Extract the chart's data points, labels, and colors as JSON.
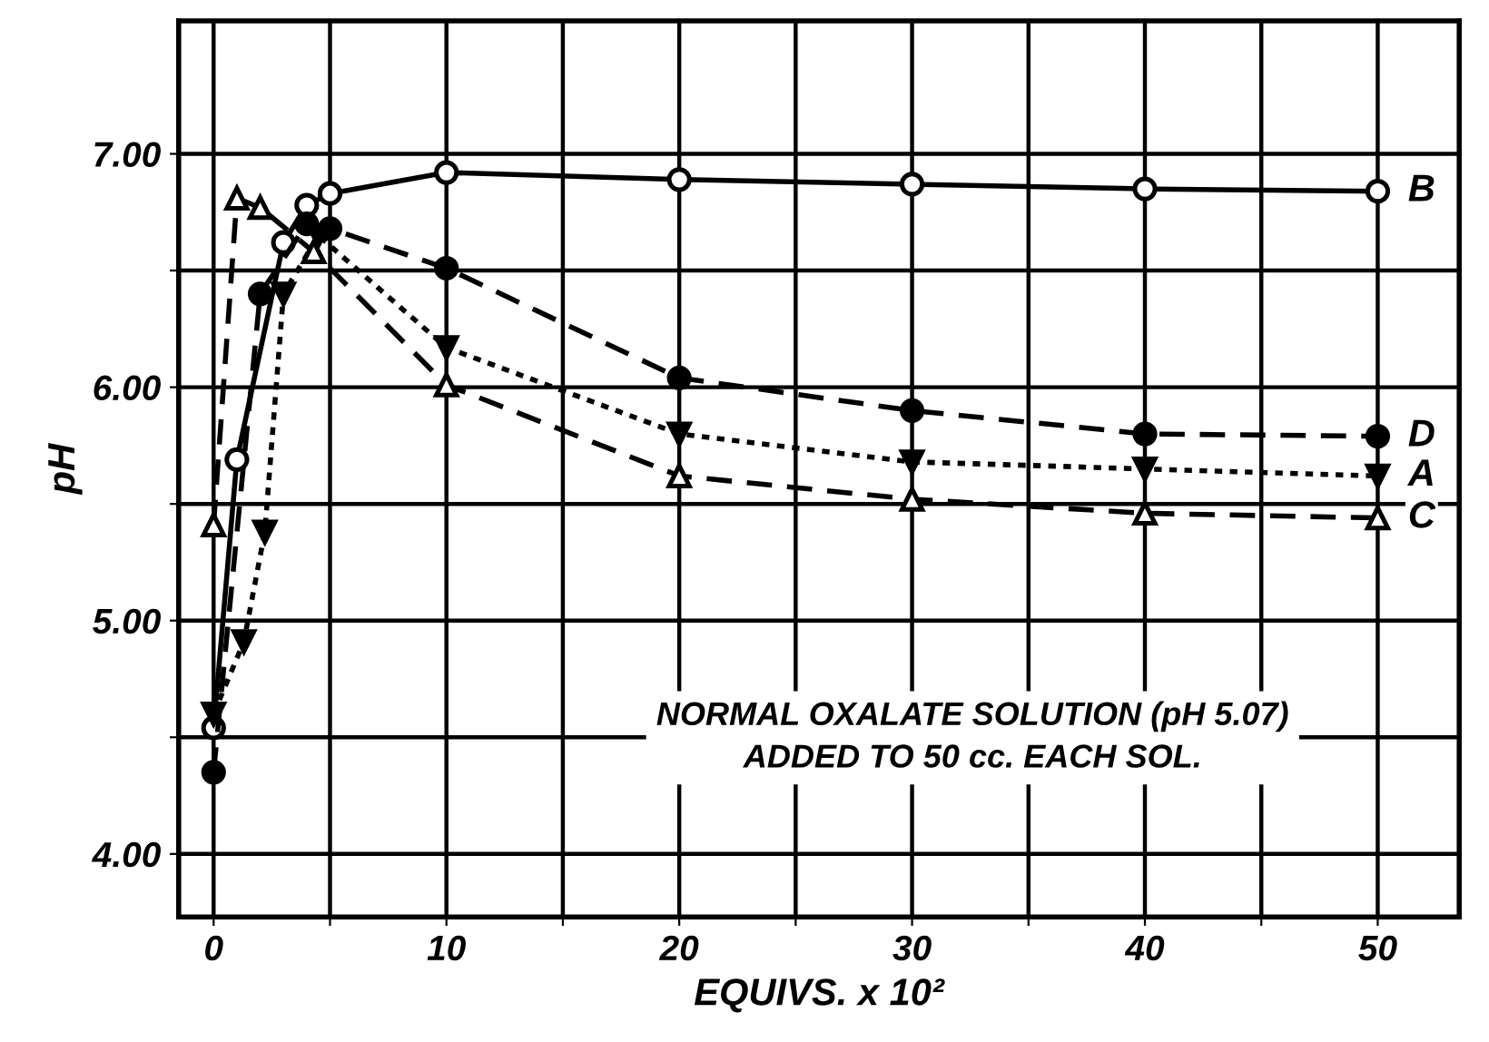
{
  "chart_data": {
    "type": "line",
    "xlabel": "EQUIVS. x 10²",
    "ylabel": "pH",
    "xlim": [
      -1.5,
      53.5
    ],
    "ylim": [
      3.73,
      7.57
    ],
    "xticks": [
      0,
      {
        "value": 5,
        "label": null
      },
      10,
      {
        "value": 15,
        "label": null
      },
      20,
      {
        "value": 25,
        "label": null
      },
      30,
      {
        "value": 35,
        "label": null
      },
      40,
      {
        "value": 45,
        "label": null
      },
      50
    ],
    "yticks": [
      {
        "value": 4,
        "label": "4.00"
      },
      {
        "value": 4.5,
        "label": null
      },
      {
        "value": 5,
        "label": "5.00"
      },
      {
        "value": 5.5,
        "label": null
      },
      {
        "value": 6,
        "label": "6.00"
      },
      {
        "value": 6.5,
        "label": null
      },
      {
        "value": 7,
        "label": "7.00"
      }
    ],
    "grid": true,
    "legend": false,
    "annotations": [
      "NORMAL OXALATE SOLUTION (pH 5.07)\nADDED TO 50 cc. EACH SOL."
    ],
    "series": [
      {
        "name": "B",
        "color": "#000000",
        "marker": "circle",
        "line_style": "solid",
        "x": [
          0,
          1,
          3,
          4,
          5,
          10,
          20,
          30,
          40,
          50
        ],
        "values": [
          4.54,
          5.69,
          6.62,
          6.78,
          6.83,
          6.92,
          6.89,
          6.87,
          6.85,
          6.84
        ]
      },
      {
        "name": "D",
        "color": "#000000",
        "marker": "circle",
        "line_style": "dashed",
        "x": [
          0,
          2,
          4,
          5,
          10,
          20,
          30,
          40,
          50
        ],
        "values": [
          4.35,
          6.4,
          6.7,
          6.68,
          6.51,
          6.04,
          5.9,
          5.8,
          5.79
        ]
      },
      {
        "name": "A",
        "color": "#000000",
        "marker": "triangle",
        "line_style": "dotted",
        "x": [
          0,
          1.3,
          2.2,
          3,
          4.5,
          10,
          20,
          30,
          40,
          50
        ],
        "values": [
          4.6,
          4.91,
          5.38,
          6.4,
          6.65,
          6.17,
          5.8,
          5.68,
          5.65,
          5.62
        ]
      },
      {
        "name": "C",
        "color": "#000000",
        "marker": "triangle",
        "line_style": "dashed",
        "x": [
          0,
          1,
          2,
          4.3,
          10,
          20,
          30,
          40,
          50
        ],
        "values": [
          5.41,
          6.81,
          6.77,
          6.58,
          6.01,
          5.62,
          5.52,
          5.46,
          5.44
        ]
      }
    ]
  }
}
